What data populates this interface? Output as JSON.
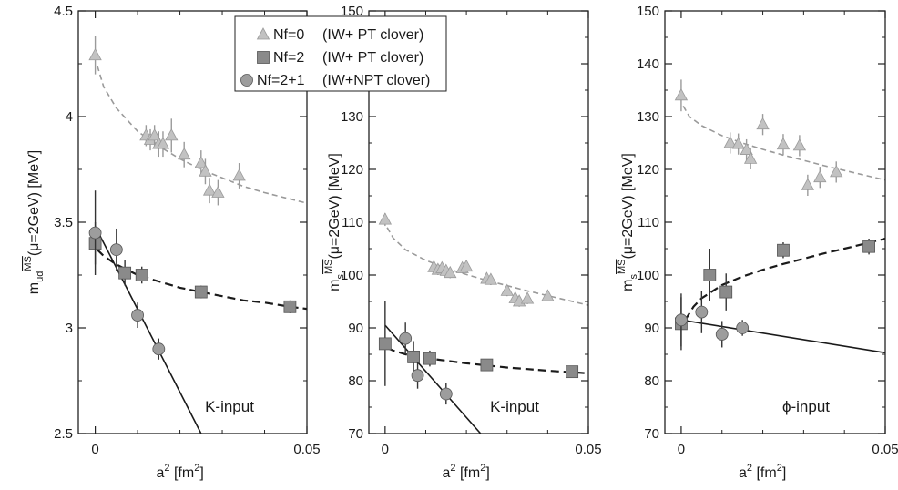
{
  "legend": {
    "entries": [
      {
        "marker": "triangle",
        "name": "Nf=0",
        "desc": "(IW+  PT clover)"
      },
      {
        "marker": "square",
        "name": "Nf=2",
        "desc": "(IW+  PT clover)"
      },
      {
        "marker": "circle",
        "name": "Nf=2+1",
        "desc": "(IW+NPT clover)"
      }
    ]
  },
  "colors": {
    "triangle": "#c2c2c2",
    "square": "#8a8a8a",
    "circle": "#9d9d9d",
    "axis": "#222222"
  },
  "chart_data": [
    {
      "type": "scatter",
      "ylabel_main": "m",
      "ylabel_sub": "ud",
      "ylabel_sup": "MS",
      "ylabel_rest": "(μ=2GeV) [MeV]",
      "xlabel_main": "a",
      "xlabel_sup": "2",
      "xlabel_rest": " [fm",
      "xlabel_sup2": "2",
      "xlabel_end": "]",
      "xlim": [
        -0.004,
        0.05
      ],
      "ylim": [
        2.5,
        4.5
      ],
      "xticks": [
        0,
        0.05
      ],
      "xtick_labels": [
        "0",
        "0.05"
      ],
      "yticks": [
        2.5,
        3,
        3.5,
        4,
        4.5
      ],
      "ytick_labels": [
        "2.5",
        "3",
        "3.5",
        "4",
        "4.5"
      ],
      "annotation": "K-input",
      "series": [
        {
          "marker": "triangle",
          "points": [
            [
              0.0,
              4.29,
              0.09
            ],
            [
              0.012,
              3.91,
              0.05
            ],
            [
              0.013,
              3.89,
              0.05
            ],
            [
              0.014,
              3.91,
              0.05
            ],
            [
              0.015,
              3.87,
              0.06
            ],
            [
              0.016,
              3.87,
              0.06
            ],
            [
              0.018,
              3.91,
              0.08
            ],
            [
              0.021,
              3.82,
              0.06
            ],
            [
              0.025,
              3.78,
              0.06
            ],
            [
              0.026,
              3.74,
              0.06
            ],
            [
              0.027,
              3.65,
              0.06
            ],
            [
              0.029,
              3.64,
              0.06
            ],
            [
              0.034,
              3.72,
              0.06
            ]
          ]
        },
        {
          "marker": "square",
          "points": [
            [
              0.0,
              3.4,
              0.1
            ],
            [
              0.007,
              3.26,
              0.06
            ],
            [
              0.011,
              3.25,
              0.04
            ],
            [
              0.025,
              3.17,
              0.03
            ],
            [
              0.046,
              3.1,
              0.03
            ]
          ]
        },
        {
          "marker": "circle",
          "points": [
            [
              0.0,
              3.45,
              0.2
            ],
            [
              0.005,
              3.37,
              0.1
            ],
            [
              0.01,
              3.06,
              0.06
            ],
            [
              0.015,
              2.9,
              0.05
            ]
          ]
        }
      ],
      "fits": [
        {
          "style": "dash-light",
          "points": [
            [
              0.0005,
              4.24
            ],
            [
              0.002,
              4.14
            ],
            [
              0.005,
              4.04
            ],
            [
              0.01,
              3.93
            ],
            [
              0.015,
              3.86
            ],
            [
              0.02,
              3.8
            ],
            [
              0.025,
              3.75
            ],
            [
              0.03,
              3.71
            ],
            [
              0.035,
              3.67
            ],
            [
              0.04,
              3.64
            ],
            [
              0.05,
              3.59
            ]
          ]
        },
        {
          "style": "dash-dark",
          "points": [
            [
              0.0005,
              3.37
            ],
            [
              0.002,
              3.34
            ],
            [
              0.005,
              3.3
            ],
            [
              0.01,
              3.25
            ],
            [
              0.015,
              3.22
            ],
            [
              0.02,
              3.19
            ],
            [
              0.025,
              3.17
            ],
            [
              0.03,
              3.15
            ],
            [
              0.035,
              3.13
            ],
            [
              0.04,
              3.12
            ],
            [
              0.046,
              3.1
            ],
            [
              0.05,
              3.09
            ]
          ]
        },
        {
          "style": "solid",
          "points": [
            [
              0.0,
              3.48
            ],
            [
              0.025,
              2.5
            ]
          ]
        }
      ]
    },
    {
      "type": "scatter",
      "ylabel_main": "m",
      "ylabel_sub": "s",
      "ylabel_sup": "MS",
      "ylabel_rest": "(μ=2GeV) [MeV]",
      "xlabel_main": "a",
      "xlabel_sup": "2",
      "xlabel_rest": " [fm",
      "xlabel_sup2": "2",
      "xlabel_end": "]",
      "xlim": [
        -0.004,
        0.05
      ],
      "ylim": [
        70,
        150
      ],
      "xticks": [
        0,
        0.05
      ],
      "xtick_labels": [
        "0",
        "0.05"
      ],
      "yticks": [
        70,
        80,
        90,
        100,
        110,
        120,
        130,
        140,
        150
      ],
      "ytick_labels": [
        "70",
        "80",
        "90",
        "100",
        "110",
        "120",
        "130",
        "140",
        "150"
      ],
      "annotation": "K-input",
      "series": [
        {
          "marker": "triangle",
          "points": [
            [
              0.0,
              110.5,
              1.2
            ],
            [
              0.012,
              101.5,
              1
            ],
            [
              0.013,
              101,
              1
            ],
            [
              0.014,
              101.3,
              1
            ],
            [
              0.015,
              100.8,
              1
            ],
            [
              0.016,
              100.4,
              1
            ],
            [
              0.019,
              101.3,
              1
            ],
            [
              0.02,
              101.6,
              1
            ],
            [
              0.025,
              99.3,
              1
            ],
            [
              0.026,
              99.1,
              1
            ],
            [
              0.03,
              97,
              1
            ],
            [
              0.032,
              95.6,
              1
            ],
            [
              0.033,
              95,
              1
            ],
            [
              0.035,
              95.5,
              1
            ],
            [
              0.04,
              96,
              1
            ]
          ]
        },
        {
          "marker": "square",
          "points": [
            [
              0.0,
              87,
              8
            ],
            [
              0.007,
              84.5,
              3
            ],
            [
              0.011,
              84.2,
              1.5
            ],
            [
              0.025,
              83,
              1
            ],
            [
              0.046,
              81.7,
              1
            ]
          ]
        },
        {
          "marker": "circle",
          "points": [
            [
              0.005,
              88,
              3
            ],
            [
              0.008,
              81,
              2.5
            ],
            [
              0.015,
              77.5,
              2
            ]
          ]
        }
      ],
      "fits": [
        {
          "style": "dash-light",
          "points": [
            [
              0.0005,
              109
            ],
            [
              0.002,
              107
            ],
            [
              0.005,
              104.8
            ],
            [
              0.01,
              102.8
            ],
            [
              0.015,
              101.3
            ],
            [
              0.02,
              100.1
            ],
            [
              0.025,
              99
            ],
            [
              0.03,
              98
            ],
            [
              0.035,
              97
            ],
            [
              0.04,
              96.1
            ],
            [
              0.05,
              94.3
            ]
          ]
        },
        {
          "style": "dash-dark",
          "points": [
            [
              0.0005,
              86.2
            ],
            [
              0.002,
              85.7
            ],
            [
              0.005,
              85
            ],
            [
              0.01,
              84.3
            ],
            [
              0.015,
              83.8
            ],
            [
              0.02,
              83.3
            ],
            [
              0.025,
              82.9
            ],
            [
              0.03,
              82.5
            ],
            [
              0.035,
              82.2
            ],
            [
              0.04,
              81.9
            ],
            [
              0.046,
              81.6
            ],
            [
              0.05,
              81.4
            ]
          ]
        },
        {
          "style": "solid",
          "points": [
            [
              0.0,
              90.5
            ],
            [
              0.0235,
              70
            ]
          ]
        }
      ]
    },
    {
      "type": "scatter",
      "ylabel_main": "m",
      "ylabel_sub": "s",
      "ylabel_sup": "MS",
      "ylabel_rest": "(μ=2GeV) [MeV]",
      "xlabel_main": "a",
      "xlabel_sup": "2",
      "xlabel_rest": " [fm",
      "xlabel_sup2": "2",
      "xlabel_end": "]",
      "xlim": [
        -0.004,
        0.05
      ],
      "ylim": [
        70,
        150
      ],
      "xticks": [
        0,
        0.05
      ],
      "xtick_labels": [
        "0",
        "0.05"
      ],
      "yticks": [
        70,
        80,
        90,
        100,
        110,
        120,
        130,
        140,
        150
      ],
      "ytick_labels": [
        "70",
        "80",
        "90",
        "100",
        "110",
        "120",
        "130",
        "140",
        "150"
      ],
      "annotation": "ϕ-input",
      "series": [
        {
          "marker": "triangle",
          "points": [
            [
              0.0,
              134,
              3
            ],
            [
              0.012,
              125,
              2
            ],
            [
              0.014,
              124.8,
              2
            ],
            [
              0.016,
              123.7,
              2
            ],
            [
              0.017,
              122,
              2
            ],
            [
              0.02,
              128.5,
              2
            ],
            [
              0.025,
              124.7,
              2
            ],
            [
              0.029,
              124.5,
              2
            ],
            [
              0.031,
              117,
              2
            ],
            [
              0.034,
              118.5,
              2
            ],
            [
              0.038,
              119.5,
              2
            ]
          ]
        },
        {
          "marker": "square",
          "points": [
            [
              0.0,
              90.8,
              5
            ],
            [
              0.007,
              100,
              5
            ],
            [
              0.011,
              96.8,
              3.5
            ],
            [
              0.025,
              104.7,
              1.5
            ],
            [
              0.046,
              105.4,
              1.5
            ]
          ]
        },
        {
          "marker": "circle",
          "points": [
            [
              0.0,
              91.5,
              5
            ],
            [
              0.005,
              93,
              4
            ],
            [
              0.01,
              88.8,
              2.5
            ],
            [
              0.015,
              90,
              1.5
            ]
          ]
        }
      ],
      "fits": [
        {
          "style": "dash-light",
          "points": [
            [
              0.0005,
              132
            ],
            [
              0.002,
              130
            ],
            [
              0.005,
              128.3
            ],
            [
              0.01,
              126.4
            ],
            [
              0.015,
              125
            ],
            [
              0.02,
              123.8
            ],
            [
              0.025,
              122.7
            ],
            [
              0.03,
              121.7
            ],
            [
              0.035,
              120.7
            ],
            [
              0.04,
              119.8
            ],
            [
              0.05,
              118
            ]
          ]
        },
        {
          "style": "dash-dark",
          "points": [
            [
              0.001,
              91.5
            ],
            [
              0.003,
              94
            ],
            [
              0.005,
              95.6
            ],
            [
              0.01,
              98.1
            ],
            [
              0.015,
              99.7
            ],
            [
              0.02,
              101
            ],
            [
              0.025,
              102.1
            ],
            [
              0.03,
              103.1
            ],
            [
              0.035,
              104.1
            ],
            [
              0.04,
              105
            ],
            [
              0.05,
              106.9
            ]
          ]
        },
        {
          "style": "solid",
          "points": [
            [
              0.0,
              91.5
            ],
            [
              0.05,
              85.3
            ]
          ]
        }
      ]
    }
  ]
}
